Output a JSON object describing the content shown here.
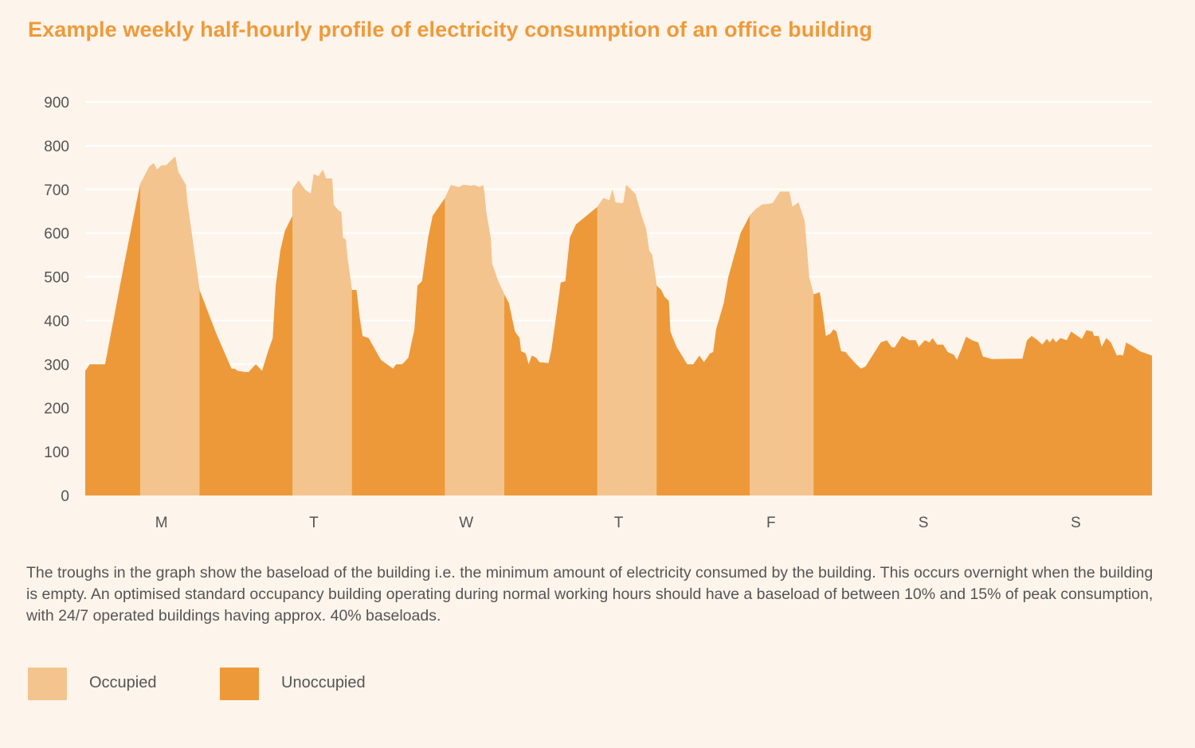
{
  "chart_data": {
    "type": "area",
    "title": "Example weekly half-hourly profile of electricity consumption of an office building",
    "xlabel": "",
    "ylabel": "",
    "ylim": [
      0,
      900
    ],
    "yticks": [
      0,
      100,
      200,
      300,
      400,
      500,
      600,
      700,
      800,
      900
    ],
    "grid": true,
    "day_labels": [
      "M",
      "T",
      "W",
      "T",
      "F",
      "S",
      "S"
    ],
    "x_unit": "day of week (0 = Monday 00:00, 7 = end of Sunday)",
    "occupied_periods": [
      [
        0.36,
        0.75
      ],
      [
        1.36,
        1.75
      ],
      [
        2.36,
        2.75
      ],
      [
        3.36,
        3.75
      ],
      [
        4.36,
        4.78
      ]
    ],
    "series": [
      {
        "name": "Occupied",
        "color": "#f4c48e"
      },
      {
        "name": "Unoccupied",
        "color": "#ed993a"
      }
    ],
    "points": [
      [
        0.0,
        285
      ],
      [
        0.03,
        300
      ],
      [
        0.13,
        300
      ],
      [
        0.25,
        520
      ],
      [
        0.33,
        660
      ],
      [
        0.36,
        712
      ],
      [
        0.42,
        752
      ],
      [
        0.45,
        760
      ],
      [
        0.47,
        745
      ],
      [
        0.5,
        755
      ],
      [
        0.53,
        755
      ],
      [
        0.59,
        775
      ],
      [
        0.61,
        740
      ],
      [
        0.66,
        710
      ],
      [
        0.67,
        670
      ],
      [
        0.75,
        470
      ],
      [
        0.86,
        370
      ],
      [
        0.96,
        290
      ],
      [
        0.98,
        290
      ],
      [
        1.0,
        285
      ],
      [
        1.04,
        283
      ],
      [
        1.07,
        282
      ],
      [
        1.12,
        300
      ],
      [
        1.16,
        285
      ],
      [
        1.2,
        330
      ],
      [
        1.23,
        360
      ],
      [
        1.25,
        480
      ],
      [
        1.28,
        560
      ],
      [
        1.31,
        605
      ],
      [
        1.36,
        640
      ],
      [
        1.36,
        700
      ],
      [
        1.4,
        720
      ],
      [
        1.44,
        700
      ],
      [
        1.48,
        690
      ],
      [
        1.5,
        735
      ],
      [
        1.53,
        730
      ],
      [
        1.56,
        745
      ],
      [
        1.58,
        725
      ],
      [
        1.62,
        725
      ],
      [
        1.63,
        665
      ],
      [
        1.66,
        652
      ],
      [
        1.68,
        648
      ],
      [
        1.69,
        590
      ],
      [
        1.71,
        585
      ],
      [
        1.72,
        545
      ],
      [
        1.75,
        470
      ],
      [
        1.78,
        470
      ],
      [
        1.8,
        410
      ],
      [
        1.82,
        365
      ],
      [
        1.86,
        360
      ],
      [
        1.94,
        310
      ],
      [
        2.02,
        290
      ],
      [
        2.04,
        300
      ],
      [
        2.08,
        300
      ],
      [
        2.12,
        315
      ],
      [
        2.16,
        380
      ],
      [
        2.18,
        480
      ],
      [
        2.21,
        490
      ],
      [
        2.25,
        590
      ],
      [
        2.28,
        640
      ],
      [
        2.36,
        680
      ],
      [
        2.4,
        710
      ],
      [
        2.45,
        705
      ],
      [
        2.48,
        710
      ],
      [
        2.5,
        710
      ],
      [
        2.53,
        708
      ],
      [
        2.55,
        710
      ],
      [
        2.59,
        705
      ],
      [
        2.61,
        710
      ],
      [
        2.62,
        690
      ],
      [
        2.63,
        650
      ],
      [
        2.66,
        590
      ],
      [
        2.67,
        530
      ],
      [
        2.71,
        490
      ],
      [
        2.75,
        460
      ],
      [
        2.78,
        440
      ],
      [
        2.82,
        375
      ],
      [
        2.85,
        360
      ],
      [
        2.86,
        330
      ],
      [
        2.89,
        325
      ],
      [
        2.91,
        300
      ],
      [
        2.93,
        320
      ],
      [
        2.96,
        315
      ],
      [
        2.98,
        305
      ],
      [
        3.04,
        303
      ],
      [
        3.06,
        335
      ],
      [
        3.09,
        410
      ],
      [
        3.12,
        487
      ],
      [
        3.15,
        490
      ],
      [
        3.18,
        590
      ],
      [
        3.22,
        620
      ],
      [
        3.36,
        660
      ],
      [
        3.4,
        680
      ],
      [
        3.44,
        675
      ],
      [
        3.46,
        700
      ],
      [
        3.48,
        670
      ],
      [
        3.53,
        668
      ],
      [
        3.55,
        710
      ],
      [
        3.58,
        700
      ],
      [
        3.61,
        690
      ],
      [
        3.65,
        640
      ],
      [
        3.68,
        610
      ],
      [
        3.7,
        560
      ],
      [
        3.72,
        550
      ],
      [
        3.75,
        480
      ],
      [
        3.78,
        470
      ],
      [
        3.8,
        455
      ],
      [
        3.83,
        445
      ],
      [
        3.84,
        375
      ],
      [
        3.88,
        340
      ],
      [
        3.95,
        300
      ],
      [
        3.99,
        300
      ],
      [
        4.03,
        320
      ],
      [
        4.06,
        305
      ],
      [
        4.1,
        325
      ],
      [
        4.12,
        328
      ],
      [
        4.14,
        380
      ],
      [
        4.19,
        440
      ],
      [
        4.22,
        500
      ],
      [
        4.26,
        550
      ],
      [
        4.3,
        600
      ],
      [
        4.36,
        640
      ],
      [
        4.4,
        655
      ],
      [
        4.44,
        665
      ],
      [
        4.51,
        668
      ],
      [
        4.56,
        695
      ],
      [
        4.62,
        695
      ],
      [
        4.64,
        660
      ],
      [
        4.68,
        670
      ],
      [
        4.72,
        628
      ],
      [
        4.75,
        500
      ],
      [
        4.78,
        460
      ],
      [
        4.82,
        465
      ],
      [
        4.84,
        420
      ],
      [
        4.86,
        365
      ],
      [
        4.89,
        370
      ],
      [
        4.91,
        380
      ],
      [
        4.93,
        375
      ],
      [
        4.96,
        330
      ],
      [
        4.99,
        328
      ],
      [
        5.02,
        315
      ],
      [
        5.06,
        300
      ],
      [
        5.09,
        290
      ],
      [
        5.12,
        295
      ],
      [
        5.22,
        350
      ],
      [
        5.26,
        355
      ],
      [
        5.29,
        340
      ],
      [
        5.31,
        338
      ],
      [
        5.36,
        365
      ],
      [
        5.41,
        355
      ],
      [
        5.45,
        355
      ],
      [
        5.47,
        340
      ],
      [
        5.51,
        355
      ],
      [
        5.54,
        350
      ],
      [
        5.56,
        360
      ],
      [
        5.59,
        345
      ],
      [
        5.63,
        345
      ],
      [
        5.66,
        328
      ],
      [
        5.7,
        322
      ],
      [
        5.72,
        310
      ],
      [
        5.75,
        335
      ],
      [
        5.78,
        363
      ],
      [
        5.82,
        355
      ],
      [
        5.86,
        350
      ],
      [
        5.89,
        318
      ],
      [
        5.95,
        312
      ],
      [
        6.15,
        313
      ],
      [
        6.18,
        355
      ],
      [
        6.21,
        365
      ],
      [
        6.25,
        355
      ],
      [
        6.28,
        345
      ],
      [
        6.31,
        358
      ],
      [
        6.33,
        350
      ],
      [
        6.35,
        360
      ],
      [
        6.37,
        350
      ],
      [
        6.4,
        360
      ],
      [
        6.44,
        355
      ],
      [
        6.47,
        375
      ],
      [
        6.54,
        358
      ],
      [
        6.57,
        378
      ],
      [
        6.61,
        375
      ],
      [
        6.62,
        365
      ],
      [
        6.65,
        365
      ],
      [
        6.67,
        340
      ],
      [
        6.7,
        360
      ],
      [
        6.73,
        350
      ],
      [
        6.77,
        320
      ],
      [
        6.79,
        322
      ],
      [
        6.81,
        320
      ],
      [
        6.83,
        350
      ],
      [
        6.88,
        340
      ],
      [
        6.92,
        330
      ],
      [
        7.0,
        320
      ]
    ]
  },
  "caption": "The troughs in the graph show the baseload of the building i.e. the minimum amount of electricity consumed by the building. This occurs overnight when the building is empty. An optimised standard occupancy building operating during normal working hours should have a baseload of between 10% and 15% of peak consumption, with 24/7 operated buildings having approx. 40% baseloads.",
  "legend": [
    {
      "label": "Occupied",
      "color": "#f4c48e"
    },
    {
      "label": "Unoccupied",
      "color": "#ed993a"
    }
  ]
}
